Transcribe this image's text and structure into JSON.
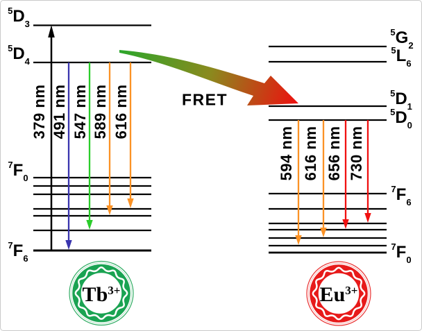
{
  "fret": {
    "label": "FRET"
  },
  "donor": {
    "ion": {
      "element": "Tb",
      "charge": "3+"
    },
    "levels": [
      {
        "sup": "5",
        "letter": "D",
        "sub": "3"
      },
      {
        "sup": "5",
        "letter": "D",
        "sub": "4"
      },
      {
        "sup": "7",
        "letter": "F",
        "sub": "0"
      },
      {
        "sup": "7",
        "letter": "F",
        "sub": "6"
      }
    ],
    "excitation": {
      "label": "379 nm"
    },
    "emissions": [
      {
        "label": "491 nm"
      },
      {
        "label": "547 nm"
      },
      {
        "label": "589 nm"
      },
      {
        "label": "616 nm"
      }
    ]
  },
  "acceptor": {
    "ion": {
      "element": "Eu",
      "charge": "3+"
    },
    "levels": [
      {
        "sup": "5",
        "letter": "G",
        "sub": "2"
      },
      {
        "sup": "5",
        "letter": "L",
        "sub": "6"
      },
      {
        "sup": "5",
        "letter": "D",
        "sub": "1"
      },
      {
        "sup": "5",
        "letter": "D",
        "sub": "0"
      },
      {
        "sup": "7",
        "letter": "F",
        "sub": "6"
      },
      {
        "sup": "7",
        "letter": "F",
        "sub": "0"
      }
    ],
    "emissions": [
      {
        "label": "594 nm"
      },
      {
        "label": "616 nm"
      },
      {
        "label": "656 nm"
      },
      {
        "label": "730 nm"
      }
    ]
  },
  "colors": {
    "level_line": "#000000",
    "excitation": "#000000",
    "emission_blue": "#3A35AE",
    "emission_green": "#2BCC2B",
    "emission_orange": "#FB9225",
    "emission_red": "#F01010",
    "donor_ring": "#1AA352",
    "acceptor_ring": "#E71A1A",
    "fret_start": "#2BA62B",
    "fret_mid": "#8A8A1E",
    "fret_end": "#EE0F0F"
  }
}
